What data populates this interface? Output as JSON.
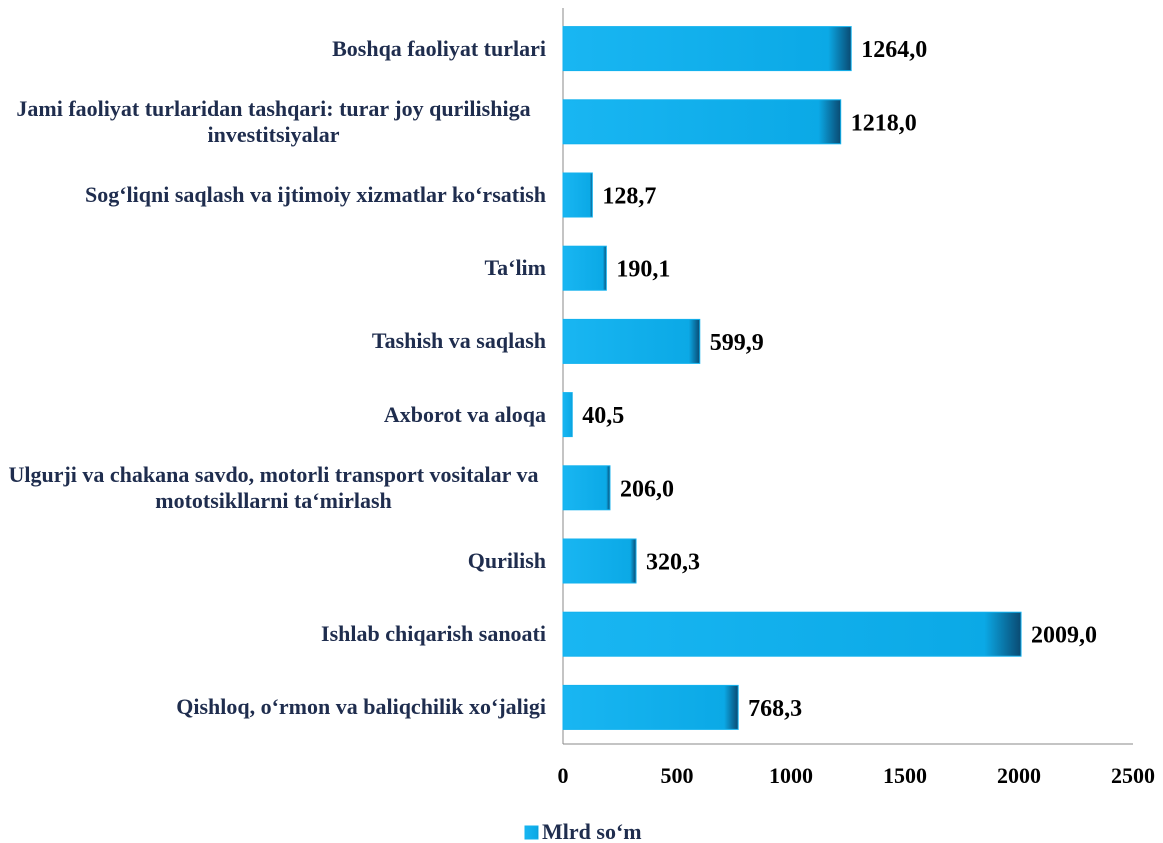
{
  "chart_data": {
    "type": "bar",
    "orientation": "horizontal",
    "categories": [
      "Boshqa faoliyat turlari",
      "Jami faoliyat turlaridan tashqari: turar joy qurilishiga investitsiyalar",
      "Sog‘liqni saqlash va ijtimoiy xizmatlar ko‘rsatish",
      "Ta‘lim",
      "Tashish va saqlash",
      "Axborot va aloqa",
      "Ulgurji va chakana savdo, motorli transport vositalar va mototsikllarni ta‘mirlash",
      "Qurilish",
      "Ishlab chiqarish sanoati",
      "Qishloq, o‘rmon va baliqchilik xo‘jaligi"
    ],
    "series": [
      {
        "name": "Mlrd so‘m",
        "color": "#13b2ee",
        "values": [
          1264.0,
          1218.0,
          128.7,
          190.1,
          599.9,
          40.5,
          206.0,
          320.3,
          2009.0,
          768.3
        ],
        "value_labels": [
          "1264,0",
          "1218,0",
          "128,7",
          "190,1",
          "599,9",
          "40,5",
          "206,0",
          "320,3",
          "2009,0",
          "768,3"
        ]
      }
    ],
    "xlim": [
      0,
      2500
    ],
    "xticks": [
      0,
      500,
      1000,
      1500,
      2000,
      2500
    ],
    "legend": "bottom"
  }
}
